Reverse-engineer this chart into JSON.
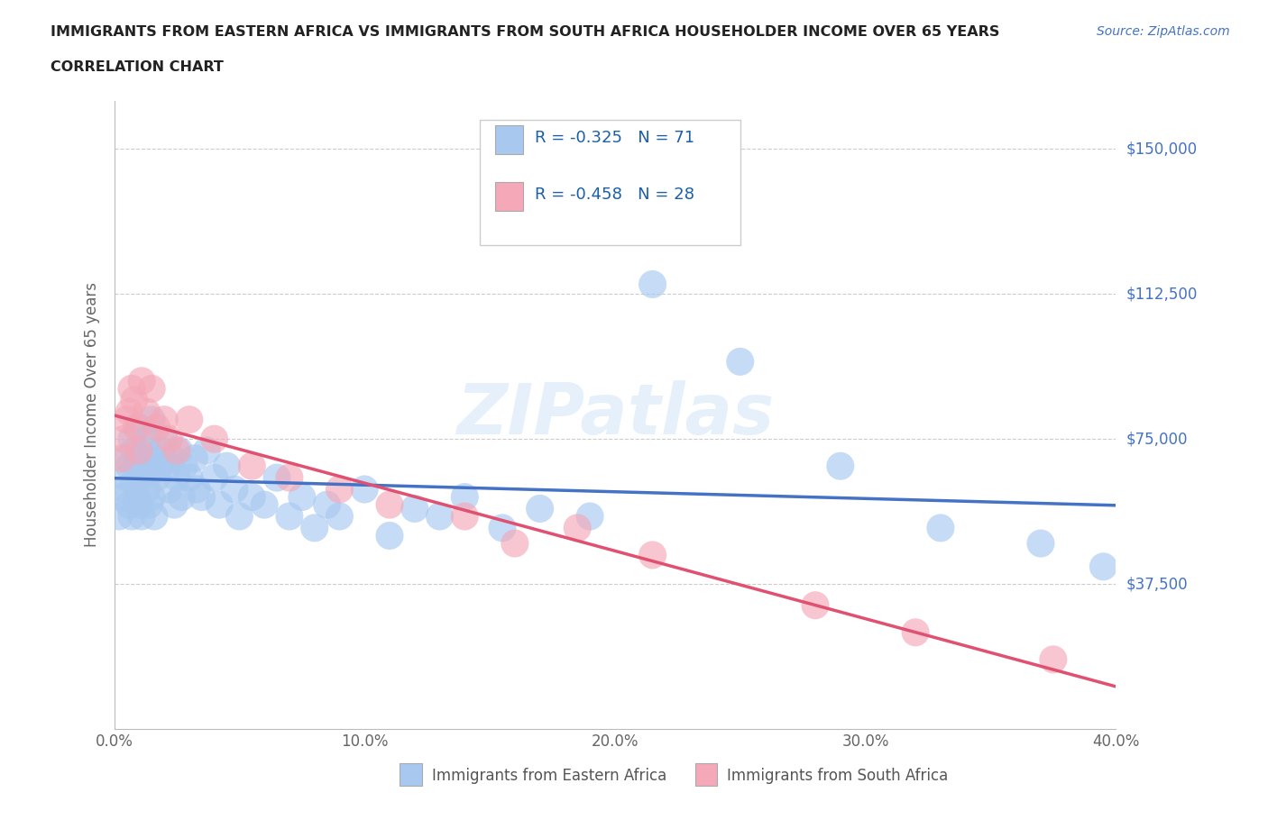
{
  "title_line1": "IMMIGRANTS FROM EASTERN AFRICA VS IMMIGRANTS FROM SOUTH AFRICA HOUSEHOLDER INCOME OVER 65 YEARS",
  "title_line2": "CORRELATION CHART",
  "source": "Source: ZipAtlas.com",
  "ylabel": "Householder Income Over 65 years",
  "xlim": [
    0.0,
    0.4
  ],
  "ylim": [
    0,
    162500
  ],
  "xtick_labels": [
    "0.0%",
    "",
    "10.0%",
    "",
    "20.0%",
    "",
    "30.0%",
    "",
    "40.0%"
  ],
  "xtick_values": [
    0.0,
    0.05,
    0.1,
    0.15,
    0.2,
    0.25,
    0.3,
    0.35,
    0.4
  ],
  "ytick_labels": [
    "$37,500",
    "$75,000",
    "$112,500",
    "$150,000"
  ],
  "ytick_values": [
    37500,
    75000,
    112500,
    150000
  ],
  "watermark": "ZIPatlas",
  "legend_r_color": "#1a5fa8",
  "series_blue": {
    "color": "#a8c8f0",
    "line_color": "#4472c4",
    "R": -0.325,
    "N": 71,
    "x": [
      0.002,
      0.003,
      0.004,
      0.005,
      0.005,
      0.006,
      0.006,
      0.007,
      0.007,
      0.008,
      0.008,
      0.009,
      0.009,
      0.01,
      0.01,
      0.011,
      0.011,
      0.012,
      0.012,
      0.013,
      0.013,
      0.014,
      0.014,
      0.015,
      0.015,
      0.016,
      0.016,
      0.017,
      0.018,
      0.019,
      0.02,
      0.021,
      0.022,
      0.023,
      0.024,
      0.025,
      0.026,
      0.027,
      0.028,
      0.03,
      0.032,
      0.033,
      0.035,
      0.037,
      0.04,
      0.042,
      0.045,
      0.048,
      0.05,
      0.055,
      0.06,
      0.065,
      0.07,
      0.075,
      0.08,
      0.085,
      0.09,
      0.1,
      0.11,
      0.12,
      0.13,
      0.14,
      0.155,
      0.17,
      0.19,
      0.215,
      0.25,
      0.29,
      0.33,
      0.37,
      0.395
    ],
    "y": [
      55000,
      60000,
      62000,
      65000,
      70000,
      68000,
      58000,
      75000,
      55000,
      72000,
      64000,
      70000,
      60000,
      78000,
      58000,
      65000,
      55000,
      72000,
      68000,
      62000,
      75000,
      66000,
      58000,
      80000,
      60000,
      70000,
      55000,
      65000,
      68000,
      72000,
      75000,
      68000,
      62000,
      70000,
      58000,
      65000,
      72000,
      60000,
      68000,
      65000,
      70000,
      62000,
      60000,
      72000,
      65000,
      58000,
      68000,
      62000,
      55000,
      60000,
      58000,
      65000,
      55000,
      60000,
      52000,
      58000,
      55000,
      62000,
      50000,
      57000,
      55000,
      60000,
      52000,
      57000,
      55000,
      115000,
      95000,
      68000,
      52000,
      48000,
      42000
    ]
  },
  "series_pink": {
    "color": "#f4a8b8",
    "line_color": "#e05070",
    "R": -0.458,
    "N": 28,
    "x": [
      0.003,
      0.004,
      0.005,
      0.006,
      0.007,
      0.008,
      0.009,
      0.01,
      0.011,
      0.013,
      0.015,
      0.017,
      0.02,
      0.022,
      0.025,
      0.03,
      0.04,
      0.055,
      0.07,
      0.09,
      0.11,
      0.14,
      0.16,
      0.185,
      0.215,
      0.28,
      0.32,
      0.375
    ],
    "y": [
      70000,
      75000,
      80000,
      82000,
      88000,
      85000,
      78000,
      72000,
      90000,
      82000,
      88000,
      78000,
      80000,
      75000,
      72000,
      80000,
      75000,
      68000,
      65000,
      62000,
      58000,
      55000,
      48000,
      52000,
      45000,
      32000,
      25000,
      18000
    ]
  },
  "grid_ytick_values": [
    37500,
    75000,
    112500,
    150000
  ],
  "background_color": "#ffffff",
  "title_color": "#222222",
  "ytick_color": "#4472c4",
  "source_color": "#4472c4"
}
